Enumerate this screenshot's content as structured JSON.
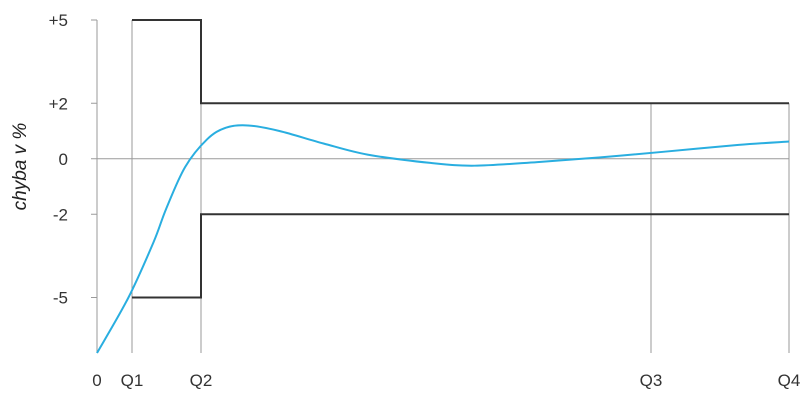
{
  "chart_data": {
    "type": "line",
    "title": "",
    "xlabel": "",
    "ylabel": "chyba v %",
    "x_ticks": [
      "0",
      "Q1",
      "Q2",
      "Q3",
      "Q4"
    ],
    "y_ticks": [
      "+5",
      "+2",
      "0",
      "-2",
      "-5"
    ],
    "ylim": [
      -7,
      5
    ],
    "tolerance_envelope": {
      "upper": [
        {
          "x": "Q1",
          "y": 5
        },
        {
          "x": "Q2",
          "y": 5
        },
        {
          "x": "Q2",
          "y": 2
        },
        {
          "x": "Q4",
          "y": 2
        }
      ],
      "lower": [
        {
          "x": "Q1",
          "y": -5
        },
        {
          "x": "Q2",
          "y": -5
        },
        {
          "x": "Q2",
          "y": -2
        },
        {
          "x": "Q4",
          "y": -2
        }
      ]
    },
    "series": [
      {
        "color": "#29aee0",
        "points": [
          {
            "x": 0,
            "y": -7.0
          },
          {
            "x": 0.5,
            "y": -5.0
          },
          {
            "x": 0.9,
            "y": -3.0
          },
          {
            "x": 1.1,
            "y": -1.8
          },
          {
            "x": 1.4,
            "y": -0.3
          },
          {
            "x": 1.75,
            "y": 0.7
          },
          {
            "x": 2.05,
            "y": 1.12
          },
          {
            "x": 2.4,
            "y": 1.2
          },
          {
            "x": 2.9,
            "y": 1.0
          },
          {
            "x": 3.6,
            "y": 0.55
          },
          {
            "x": 4.3,
            "y": 0.15
          },
          {
            "x": 5.3,
            "y": -0.15
          },
          {
            "x": 6.0,
            "y": -0.25
          },
          {
            "x": 7.0,
            "y": -0.12
          },
          {
            "x": 8.0,
            "y": 0.05
          },
          {
            "x": 9.0,
            "y": 0.25
          },
          {
            "x": 10.2,
            "y": 0.5
          },
          {
            "x": 11.0,
            "y": 0.62
          }
        ]
      }
    ],
    "grid": false
  },
  "colors": {
    "curve": "#29aee0",
    "envelope": "#333333",
    "guide_lines": "#9a9a9a"
  }
}
